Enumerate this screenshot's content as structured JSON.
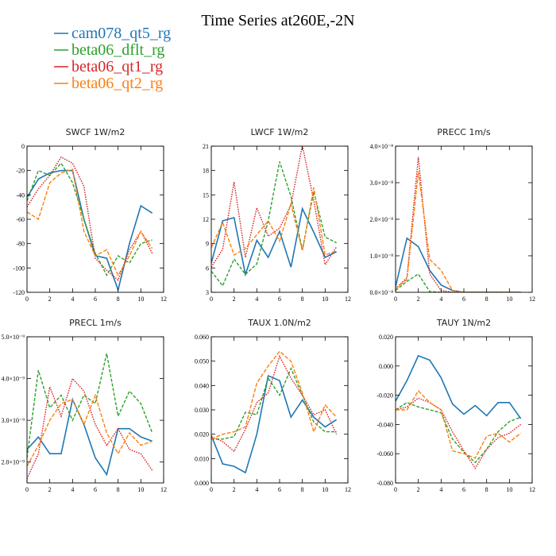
{
  "figure": {
    "title": "Time Series at260E,-2N",
    "legend": [
      {
        "name": "cam078_qt5_rg",
        "color": "#1f77b4",
        "style": "solid"
      },
      {
        "name": "beta06_dflt_rg",
        "color": "#2ca02c",
        "style": "dash"
      },
      {
        "name": "beta06_qt1_rg",
        "color": "#d62728",
        "style": "dot"
      },
      {
        "name": "beta06_qt2_rg",
        "color": "#ff7f0e",
        "style": "longdash"
      }
    ]
  },
  "chart_data": [
    {
      "type": "line",
      "title": "SWCF   1W/m2",
      "x": [
        0,
        1,
        2,
        3,
        4,
        5,
        6,
        7,
        8,
        9,
        10,
        11
      ],
      "xlim": [
        0,
        12
      ],
      "xticks": [
        0,
        2,
        4,
        6,
        8,
        10,
        12
      ],
      "ylim": [
        -120,
        0
      ],
      "yticks": [
        -120,
        -100,
        -80,
        -60,
        -40,
        -20,
        0
      ],
      "ytick_labels": [
        "-120",
        "-100",
        "-80",
        "-60",
        "-40",
        "-20",
        "0"
      ],
      "series": [
        {
          "name": "cam078_qt5_rg",
          "values": [
            -42,
            -27,
            -22,
            -20,
            -20,
            -60,
            -90,
            -92,
            -118,
            -80,
            -49,
            -55
          ]
        },
        {
          "name": "beta06_dflt_rg",
          "values": [
            -45,
            -20,
            -24,
            -14,
            -30,
            -60,
            -88,
            -106,
            -90,
            -96,
            -80,
            -77
          ]
        },
        {
          "name": "beta06_qt1_rg",
          "values": [
            -50,
            -35,
            -24,
            -9,
            -14,
            -33,
            -92,
            -102,
            -110,
            -85,
            -70,
            -88
          ]
        },
        {
          "name": "beta06_qt2_rg",
          "values": [
            -54,
            -60,
            -30,
            -22,
            -19,
            -70,
            -90,
            -85,
            -106,
            -90,
            -70,
            -84
          ]
        }
      ]
    },
    {
      "type": "line",
      "title": "LWCF   1W/m2",
      "x": [
        0,
        1,
        2,
        3,
        4,
        5,
        6,
        7,
        8,
        9,
        10,
        11
      ],
      "xlim": [
        0,
        12
      ],
      "xticks": [
        0,
        2,
        4,
        6,
        8,
        10,
        12
      ],
      "ylim": [
        3,
        21
      ],
      "yticks": [
        3,
        6,
        9,
        12,
        15,
        18,
        21
      ],
      "ytick_labels": [
        "3",
        "6",
        "9",
        "12",
        "15",
        "18",
        "21"
      ],
      "series": [
        {
          "name": "cam078_qt5_rg",
          "values": [
            6.6,
            11.8,
            12.2,
            5.2,
            9.4,
            7.3,
            10.5,
            6.1,
            13.3,
            10.4,
            7.3,
            8
          ]
        },
        {
          "name": "beta06_dflt_rg",
          "values": [
            5.6,
            3.8,
            7.1,
            5.2,
            6.5,
            11.8,
            19.1,
            14.8,
            8.2,
            15.4,
            9.8,
            9.1
          ]
        },
        {
          "name": "beta06_qt1_rg",
          "values": [
            6.1,
            8.3,
            16.6,
            7.3,
            13.4,
            9.9,
            10.9,
            13.8,
            21.1,
            14.3,
            6.4,
            8.6
          ]
        },
        {
          "name": "beta06_qt2_rg",
          "values": [
            8.5,
            11.6,
            7.6,
            8.4,
            10.1,
            11.8,
            9.3,
            13.9,
            8.1,
            15.9,
            7.6,
            8.1
          ]
        }
      ]
    },
    {
      "type": "line",
      "title": "PRECC   1m/s",
      "x": [
        0,
        1,
        2,
        3,
        4,
        5,
        6,
        7,
        8,
        9,
        10,
        11
      ],
      "xlim": [
        0,
        12
      ],
      "xticks": [
        0,
        2,
        4,
        6,
        8,
        10,
        12
      ],
      "ylim": [
        0,
        4
      ],
      "ylabel_unit": "×10⁻⁸",
      "yticks": [
        0,
        1,
        2,
        3,
        4
      ],
      "ytick_labels": [
        "0.0×10⁻⁸",
        "1.0×10⁻⁸",
        "2.0×10⁻⁸",
        "3.0×10⁻⁸",
        "4.0×10⁻⁸"
      ],
      "series": [
        {
          "name": "cam078_qt5_rg",
          "values": [
            0.15,
            1.48,
            1.25,
            0.6,
            0.2,
            0.05,
            0,
            0,
            0,
            0,
            0,
            0
          ]
        },
        {
          "name": "beta06_dflt_rg",
          "values": [
            0.05,
            0.3,
            0.5,
            0.02,
            0,
            0,
            0,
            0,
            0,
            0,
            0,
            0
          ]
        },
        {
          "name": "beta06_qt1_rg",
          "values": [
            0.1,
            0.4,
            3.7,
            0.5,
            0.05,
            0,
            0,
            0,
            0,
            0,
            0,
            0
          ]
        },
        {
          "name": "beta06_qt2_rg",
          "values": [
            0.1,
            0.35,
            3.3,
            0.9,
            0.6,
            0.05,
            0,
            0,
            0,
            0,
            0,
            0
          ]
        }
      ]
    },
    {
      "type": "line",
      "title": "PRECL   1m/s",
      "x": [
        0,
        1,
        2,
        3,
        4,
        5,
        6,
        7,
        8,
        9,
        10,
        11
      ],
      "xlim": [
        0,
        12
      ],
      "xticks": [
        0,
        2,
        4,
        6,
        8,
        10,
        12
      ],
      "ylim": [
        1.5,
        5
      ],
      "yticks": [
        2,
        3,
        4,
        5
      ],
      "ytick_labels": [
        "2.0×10⁻⁹",
        "3.0×10⁻⁹",
        "4.0×10⁻⁹",
        "5.0×10⁻⁹"
      ],
      "series": [
        {
          "name": "cam078_qt5_rg",
          "values": [
            2.3,
            2.6,
            2.2,
            2.2,
            3.5,
            2.9,
            2.1,
            1.7,
            2.8,
            2.8,
            2.6,
            2.5
          ]
        },
        {
          "name": "beta06_dflt_rg",
          "values": [
            2.1,
            4.2,
            3.3,
            3.6,
            3,
            3.6,
            3.4,
            4.6,
            3.1,
            3.7,
            3.4,
            2.7
          ]
        },
        {
          "name": "beta06_qt1_rg",
          "values": [
            1.6,
            2.2,
            3.8,
            3.1,
            4,
            3.7,
            2.9,
            2.4,
            2.8,
            2.3,
            2.2,
            1.8
          ]
        },
        {
          "name": "beta06_qt2_rg",
          "values": [
            1.9,
            2.4,
            3,
            3.4,
            3.5,
            2.9,
            3.6,
            2.7,
            2.2,
            2.7,
            2.4,
            2.5
          ]
        }
      ]
    },
    {
      "type": "line",
      "title": "TAUX   1.0N/m2",
      "x": [
        0,
        1,
        2,
        3,
        4,
        5,
        6,
        7,
        8,
        9,
        10,
        11
      ],
      "xlim": [
        0,
        12
      ],
      "xticks": [
        0,
        2,
        4,
        6,
        8,
        10,
        12
      ],
      "ylim": [
        0,
        0.06
      ],
      "yticks": [
        0,
        0.01,
        0.02,
        0.03,
        0.04,
        0.05,
        0.06
      ],
      "ytick_labels": [
        "0.000",
        "0.010",
        "0.020",
        "0.030",
        "0.040",
        "0.050",
        "0.060"
      ],
      "series": [
        {
          "name": "cam078_qt5_rg",
          "values": [
            0.0195,
            0.0078,
            0.0068,
            0.0042,
            0.02,
            0.044,
            0.042,
            0.027,
            0.034,
            0.027,
            0.023,
            0.026
          ]
        },
        {
          "name": "beta06_dflt_rg",
          "values": [
            0.018,
            0.018,
            0.019,
            0.029,
            0.028,
            0.043,
            0.036,
            0.047,
            0.036,
            0.025,
            0.021,
            0.021
          ]
        },
        {
          "name": "beta06_qt1_rg",
          "values": [
            0.019,
            0.017,
            0.013,
            0.022,
            0.033,
            0.037,
            0.052,
            0.043,
            0.036,
            0.028,
            0.03,
            0.02
          ]
        },
        {
          "name": "beta06_qt2_rg",
          "values": [
            0.018,
            0.02,
            0.021,
            0.023,
            0.041,
            0.048,
            0.054,
            0.05,
            0.037,
            0.021,
            0.032,
            0.027
          ]
        }
      ]
    },
    {
      "type": "line",
      "title": "TAUY   1N/m2",
      "x": [
        0,
        1,
        2,
        3,
        4,
        5,
        6,
        7,
        8,
        9,
        10,
        11
      ],
      "xlim": [
        0,
        12
      ],
      "xticks": [
        0,
        2,
        4,
        6,
        8,
        10,
        12
      ],
      "ylim": [
        -0.08,
        0.02
      ],
      "yticks": [
        -0.08,
        -0.06,
        -0.04,
        -0.02,
        0,
        0.02
      ],
      "ytick_labels": [
        "-0.080",
        "-0.060",
        "-0.040",
        "-0.020",
        "0.000",
        "0.020"
      ],
      "series": [
        {
          "name": "cam078_qt5_rg",
          "values": [
            -0.024,
            -0.01,
            0.007,
            0.004,
            -0.008,
            -0.026,
            -0.033,
            -0.027,
            -0.034,
            -0.025,
            -0.025,
            -0.036
          ]
        },
        {
          "name": "beta06_dflt_rg",
          "values": [
            -0.03,
            -0.025,
            -0.028,
            -0.03,
            -0.032,
            -0.05,
            -0.059,
            -0.066,
            -0.057,
            -0.045,
            -0.038,
            -0.035
          ]
        },
        {
          "name": "beta06_qt1_rg",
          "values": [
            -0.03,
            -0.028,
            -0.022,
            -0.025,
            -0.03,
            -0.045,
            -0.058,
            -0.07,
            -0.057,
            -0.049,
            -0.046,
            -0.04
          ]
        },
        {
          "name": "beta06_qt2_rg",
          "values": [
            -0.03,
            -0.03,
            -0.017,
            -0.025,
            -0.03,
            -0.058,
            -0.06,
            -0.063,
            -0.048,
            -0.046,
            -0.052,
            -0.046
          ]
        }
      ]
    }
  ]
}
